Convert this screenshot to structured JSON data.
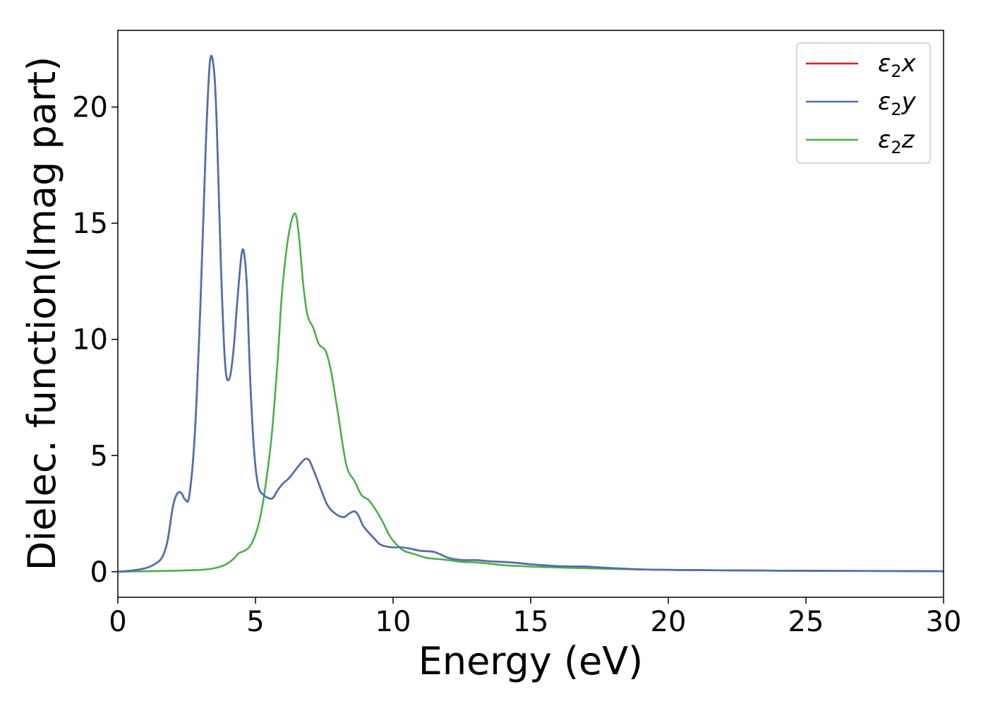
{
  "chart_data": {
    "type": "line",
    "title": "",
    "xlabel": "Energy (eV)",
    "ylabel": "Dielec. function(Imag part)",
    "xlim": [
      0,
      30
    ],
    "ylim": [
      -1.1,
      23.3
    ],
    "xticks": [
      0,
      5,
      10,
      15,
      20,
      25,
      30
    ],
    "yticks": [
      0,
      5,
      10,
      15,
      20
    ],
    "xtick_labels": [
      "0",
      "5",
      "10",
      "15",
      "20",
      "25",
      "30"
    ],
    "ytick_labels": [
      "0",
      "5",
      "10",
      "15",
      "20"
    ],
    "grid": false,
    "legend_position": "top-right",
    "series": [
      {
        "name": "ε2x",
        "legend": {
          "symbol": "ε",
          "sub": "2",
          "axis": "x"
        },
        "color": "#e41a1c",
        "x": [
          0,
          0.5,
          1.0,
          1.3,
          1.6,
          1.8,
          2.0,
          2.15,
          2.3,
          2.45,
          2.6,
          2.8,
          3.0,
          3.2,
          3.35,
          3.5,
          3.6,
          3.75,
          3.9,
          4.05,
          4.2,
          4.35,
          4.5,
          4.6,
          4.7,
          4.8,
          4.95,
          5.1,
          5.3,
          5.6,
          5.8,
          6.0,
          6.2,
          6.4,
          6.6,
          6.8,
          6.95,
          7.1,
          7.3,
          7.6,
          7.9,
          8.2,
          8.4,
          8.6,
          8.75,
          8.9,
          9.1,
          9.3,
          9.5,
          9.7,
          10.0,
          10.3,
          10.6,
          11.0,
          11.5,
          12.0,
          12.5,
          13.0,
          13.5,
          14.0,
          14.5,
          15.0,
          16.0,
          17.0,
          18.0,
          19.0,
          20.0,
          22.0,
          25.0,
          28.0,
          30.0
        ],
        "values": [
          0.0,
          0.05,
          0.15,
          0.3,
          0.6,
          1.3,
          2.8,
          3.35,
          3.4,
          3.1,
          3.3,
          6.0,
          11.5,
          18.5,
          22.0,
          21.5,
          19.0,
          13.0,
          8.9,
          8.3,
          9.5,
          11.8,
          13.7,
          13.6,
          12.0,
          8.5,
          5.2,
          3.7,
          3.3,
          3.15,
          3.5,
          3.8,
          4.0,
          4.3,
          4.6,
          4.85,
          4.8,
          4.4,
          3.8,
          2.9,
          2.5,
          2.35,
          2.5,
          2.6,
          2.4,
          2.0,
          1.7,
          1.45,
          1.2,
          1.1,
          1.05,
          1.05,
          1.0,
          0.9,
          0.85,
          0.6,
          0.5,
          0.5,
          0.45,
          0.42,
          0.38,
          0.32,
          0.24,
          0.22,
          0.15,
          0.1,
          0.08,
          0.06,
          0.04,
          0.03,
          0.02
        ]
      },
      {
        "name": "ε2y",
        "legend": {
          "symbol": "ε",
          "sub": "2",
          "axis": "y"
        },
        "color": "#4c72b0",
        "x": [
          0,
          0.5,
          1.0,
          1.3,
          1.6,
          1.8,
          2.0,
          2.15,
          2.3,
          2.45,
          2.6,
          2.8,
          3.0,
          3.2,
          3.35,
          3.5,
          3.6,
          3.75,
          3.9,
          4.05,
          4.2,
          4.35,
          4.5,
          4.6,
          4.7,
          4.8,
          4.95,
          5.1,
          5.3,
          5.6,
          5.8,
          6.0,
          6.2,
          6.4,
          6.6,
          6.8,
          6.95,
          7.1,
          7.3,
          7.6,
          7.9,
          8.2,
          8.4,
          8.6,
          8.75,
          8.9,
          9.1,
          9.3,
          9.5,
          9.7,
          10.0,
          10.3,
          10.6,
          11.0,
          11.5,
          12.0,
          12.5,
          13.0,
          13.5,
          14.0,
          14.5,
          15.0,
          16.0,
          17.0,
          18.0,
          19.0,
          20.0,
          22.0,
          25.0,
          28.0,
          30.0
        ],
        "values": [
          0.0,
          0.05,
          0.15,
          0.3,
          0.6,
          1.3,
          2.8,
          3.35,
          3.4,
          3.1,
          3.3,
          6.0,
          11.5,
          18.5,
          22.0,
          21.5,
          19.0,
          13.0,
          8.9,
          8.3,
          9.5,
          11.8,
          13.7,
          13.6,
          12.0,
          8.5,
          5.2,
          3.7,
          3.3,
          3.15,
          3.5,
          3.8,
          4.0,
          4.3,
          4.6,
          4.85,
          4.8,
          4.4,
          3.8,
          2.9,
          2.5,
          2.35,
          2.5,
          2.6,
          2.4,
          2.0,
          1.7,
          1.45,
          1.2,
          1.1,
          1.05,
          1.05,
          1.0,
          0.9,
          0.85,
          0.6,
          0.5,
          0.5,
          0.45,
          0.42,
          0.38,
          0.32,
          0.24,
          0.22,
          0.15,
          0.1,
          0.08,
          0.06,
          0.04,
          0.03,
          0.02
        ]
      },
      {
        "name": "ε2z",
        "legend": {
          "symbol": "ε",
          "sub": "2",
          "axis": "z"
        },
        "color": "#4daf4a",
        "x": [
          0,
          1.0,
          2.0,
          3.0,
          3.5,
          3.9,
          4.2,
          4.4,
          4.6,
          4.8,
          5.0,
          5.2,
          5.4,
          5.6,
          5.8,
          5.95,
          6.1,
          6.25,
          6.4,
          6.5,
          6.6,
          6.75,
          6.9,
          7.1,
          7.3,
          7.55,
          7.75,
          8.0,
          8.3,
          8.6,
          8.85,
          9.1,
          9.35,
          9.6,
          9.85,
          10.1,
          10.4,
          10.8,
          11.2,
          11.6,
          12.0,
          12.5,
          13.0,
          13.5,
          14.0,
          14.5,
          15.0,
          16.0,
          17.0,
          18.0,
          20.0,
          22.0,
          25.0,
          28.0,
          30.0
        ],
        "values": [
          0.0,
          0.02,
          0.04,
          0.08,
          0.15,
          0.3,
          0.55,
          0.8,
          0.9,
          1.1,
          1.6,
          2.5,
          4.0,
          6.0,
          9.0,
          11.8,
          13.6,
          14.8,
          15.4,
          15.2,
          14.2,
          12.2,
          11.0,
          10.5,
          9.8,
          9.5,
          8.6,
          6.8,
          4.6,
          3.9,
          3.3,
          3.1,
          2.7,
          2.2,
          1.6,
          1.2,
          0.9,
          0.75,
          0.6,
          0.55,
          0.5,
          0.42,
          0.4,
          0.35,
          0.28,
          0.25,
          0.22,
          0.18,
          0.15,
          0.12,
          0.08,
          0.06,
          0.04,
          0.03,
          0.02
        ]
      }
    ]
  }
}
